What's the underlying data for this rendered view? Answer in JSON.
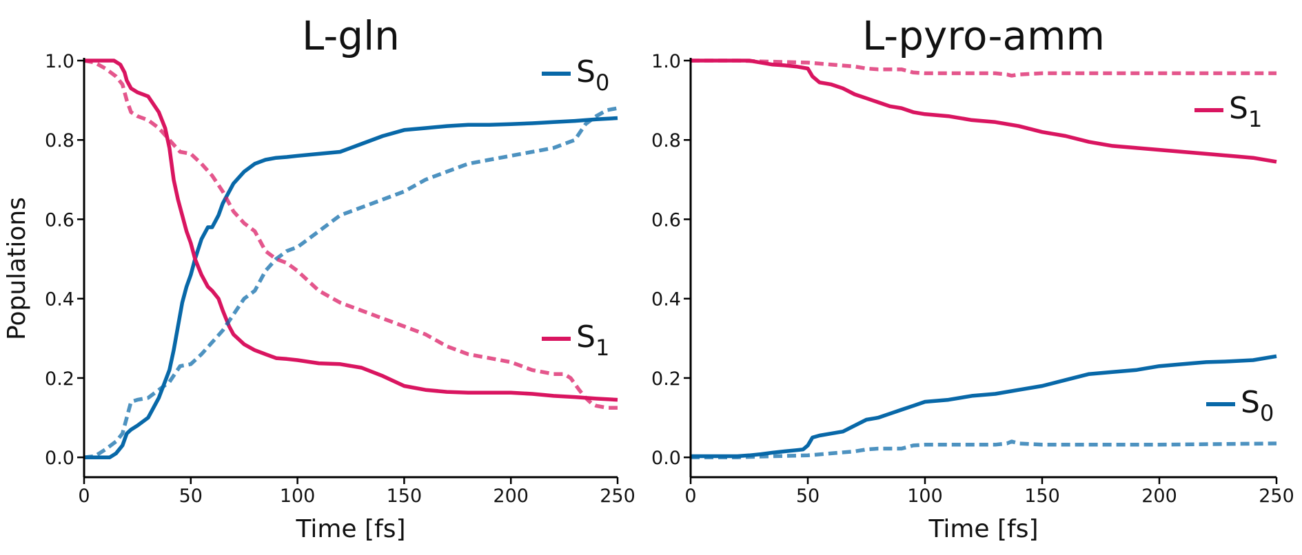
{
  "figure": {
    "ylabel": "Populations"
  },
  "colors": {
    "S0": "#0868a8",
    "S1": "#d91560",
    "axis": "#000000"
  },
  "chart_data": [
    {
      "type": "line",
      "title": "L-gln",
      "xlabel": "Time [fs]",
      "ylabel": "Populations",
      "xlim": [
        0,
        250
      ],
      "ylim": [
        -0.05,
        1.0
      ],
      "xticks": [
        0,
        50,
        100,
        150,
        200,
        250
      ],
      "yticks": [
        0.0,
        0.2,
        0.4,
        0.6,
        0.8,
        1.0
      ],
      "ytick_labels": [
        "0.0",
        "0.2",
        "0.4",
        "0.6",
        "0.8",
        "1.0"
      ],
      "legend": [
        {
          "base": "S",
          "sub": "0",
          "series": "S0",
          "placement": "upper-right"
        },
        {
          "base": "S",
          "sub": "1",
          "series": "S1",
          "placement": "lower-right"
        }
      ],
      "series": [
        {
          "name": "S0 solid",
          "state": "S0",
          "style": "solid",
          "x": [
            0,
            5,
            10,
            12,
            15,
            18,
            20,
            22,
            25,
            30,
            35,
            40,
            42,
            44,
            46,
            48,
            50,
            52,
            55,
            58,
            60,
            63,
            65,
            68,
            70,
            75,
            80,
            85,
            90,
            95,
            100,
            110,
            120,
            130,
            140,
            150,
            160,
            170,
            180,
            190,
            200,
            210,
            220,
            230,
            240,
            250
          ],
          "y": [
            0,
            0,
            0,
            0,
            0.01,
            0.03,
            0.06,
            0.07,
            0.08,
            0.1,
            0.15,
            0.22,
            0.27,
            0.33,
            0.39,
            0.43,
            0.46,
            0.5,
            0.55,
            0.58,
            0.58,
            0.61,
            0.64,
            0.67,
            0.69,
            0.72,
            0.74,
            0.75,
            0.755,
            0.757,
            0.76,
            0.765,
            0.77,
            0.79,
            0.81,
            0.825,
            0.83,
            0.835,
            0.838,
            0.838,
            0.84,
            0.842,
            0.845,
            0.848,
            0.852,
            0.855
          ]
        },
        {
          "name": "S1 solid",
          "state": "S1",
          "style": "solid",
          "x": [
            0,
            5,
            10,
            14,
            17,
            19,
            20,
            22,
            25,
            30,
            35,
            38,
            40,
            42,
            44,
            46,
            48,
            50,
            52,
            55,
            58,
            60,
            63,
            65,
            68,
            70,
            75,
            80,
            85,
            90,
            95,
            100,
            110,
            120,
            130,
            140,
            150,
            160,
            170,
            180,
            190,
            200,
            210,
            220,
            230,
            240,
            250
          ],
          "y": [
            1,
            1,
            1,
            1,
            0.99,
            0.97,
            0.95,
            0.93,
            0.92,
            0.91,
            0.87,
            0.83,
            0.78,
            0.7,
            0.65,
            0.61,
            0.57,
            0.54,
            0.5,
            0.46,
            0.43,
            0.42,
            0.4,
            0.37,
            0.33,
            0.31,
            0.285,
            0.27,
            0.26,
            0.25,
            0.248,
            0.245,
            0.237,
            0.235,
            0.226,
            0.205,
            0.18,
            0.17,
            0.165,
            0.163,
            0.163,
            0.163,
            0.16,
            0.155,
            0.152,
            0.148,
            0.145
          ]
        },
        {
          "name": "S0 dashed",
          "state": "S0",
          "style": "dashed",
          "x": [
            0,
            5,
            10,
            15,
            18,
            20,
            22,
            25,
            30,
            35,
            40,
            45,
            50,
            55,
            60,
            65,
            70,
            75,
            80,
            85,
            90,
            95,
            100,
            110,
            120,
            130,
            140,
            150,
            160,
            170,
            180,
            190,
            200,
            210,
            220,
            225,
            230,
            235,
            240,
            245,
            250
          ],
          "y": [
            0,
            0.003,
            0.02,
            0.04,
            0.06,
            0.1,
            0.14,
            0.145,
            0.15,
            0.17,
            0.19,
            0.23,
            0.235,
            0.26,
            0.29,
            0.32,
            0.36,
            0.4,
            0.42,
            0.47,
            0.5,
            0.52,
            0.53,
            0.57,
            0.61,
            0.63,
            0.65,
            0.67,
            0.7,
            0.72,
            0.74,
            0.75,
            0.76,
            0.77,
            0.78,
            0.79,
            0.8,
            0.84,
            0.86,
            0.875,
            0.88
          ]
        },
        {
          "name": "S1 dashed",
          "state": "S1",
          "style": "dashed",
          "x": [
            0,
            5,
            10,
            15,
            18,
            20,
            22,
            25,
            30,
            35,
            40,
            45,
            50,
            55,
            60,
            65,
            70,
            75,
            80,
            85,
            90,
            95,
            100,
            110,
            120,
            130,
            140,
            150,
            160,
            170,
            180,
            190,
            200,
            210,
            220,
            225,
            228,
            232,
            235,
            238,
            240,
            245,
            250
          ],
          "y": [
            1,
            0.995,
            0.98,
            0.96,
            0.94,
            0.9,
            0.87,
            0.86,
            0.85,
            0.83,
            0.8,
            0.77,
            0.765,
            0.74,
            0.71,
            0.67,
            0.62,
            0.59,
            0.57,
            0.52,
            0.5,
            0.49,
            0.47,
            0.42,
            0.39,
            0.37,
            0.35,
            0.33,
            0.31,
            0.28,
            0.26,
            0.25,
            0.24,
            0.22,
            0.21,
            0.21,
            0.2,
            0.17,
            0.15,
            0.135,
            0.13,
            0.125,
            0.125
          ]
        }
      ]
    },
    {
      "type": "line",
      "title": "L-pyro-amm",
      "xlabel": "Time [fs]",
      "ylabel": "",
      "xlim": [
        0,
        250
      ],
      "ylim": [
        -0.05,
        1.0
      ],
      "xticks": [
        0,
        50,
        100,
        150,
        200,
        250
      ],
      "yticks": [
        0.0,
        0.2,
        0.4,
        0.6,
        0.8,
        1.0
      ],
      "ytick_labels": [
        "0.0",
        "0.2",
        "0.4",
        "0.6",
        "0.8",
        "1.0"
      ],
      "legend": [
        {
          "base": "S",
          "sub": "1",
          "series": "S1",
          "placement": "upper-right"
        },
        {
          "base": "S",
          "sub": "0",
          "series": "S0",
          "placement": "lower-right"
        }
      ],
      "series": [
        {
          "name": "S1 solid",
          "state": "S1",
          "style": "solid",
          "x": [
            0,
            10,
            20,
            25,
            30,
            35,
            40,
            45,
            50,
            52,
            55,
            60,
            65,
            70,
            75,
            80,
            85,
            90,
            95,
            100,
            110,
            120,
            130,
            140,
            150,
            160,
            170,
            180,
            190,
            200,
            210,
            220,
            230,
            240,
            250
          ],
          "y": [
            1,
            1,
            1,
            1,
            0.995,
            0.99,
            0.988,
            0.985,
            0.98,
            0.96,
            0.945,
            0.94,
            0.93,
            0.915,
            0.905,
            0.895,
            0.885,
            0.88,
            0.87,
            0.865,
            0.86,
            0.85,
            0.845,
            0.835,
            0.82,
            0.81,
            0.795,
            0.785,
            0.78,
            0.775,
            0.77,
            0.765,
            0.76,
            0.755,
            0.745
          ]
        },
        {
          "name": "S0 solid",
          "state": "S0",
          "style": "solid",
          "x": [
            0,
            10,
            20,
            25,
            30,
            35,
            40,
            45,
            48,
            50,
            52,
            55,
            60,
            65,
            70,
            75,
            80,
            85,
            90,
            95,
            100,
            110,
            120,
            130,
            140,
            150,
            160,
            170,
            180,
            190,
            200,
            210,
            220,
            230,
            240,
            250
          ],
          "y": [
            0.003,
            0.003,
            0.003,
            0.005,
            0.008,
            0.012,
            0.015,
            0.018,
            0.02,
            0.03,
            0.05,
            0.055,
            0.06,
            0.065,
            0.08,
            0.095,
            0.1,
            0.11,
            0.12,
            0.13,
            0.14,
            0.145,
            0.155,
            0.16,
            0.17,
            0.18,
            0.195,
            0.21,
            0.215,
            0.22,
            0.23,
            0.235,
            0.24,
            0.242,
            0.245,
            0.255
          ]
        },
        {
          "name": "S1 dashed",
          "state": "S1",
          "style": "dashed",
          "x": [
            0,
            20,
            30,
            50,
            60,
            70,
            75,
            80,
            90,
            95,
            100,
            110,
            120,
            130,
            135,
            137,
            140,
            150,
            200,
            250
          ],
          "y": [
            1,
            1,
            0.998,
            0.995,
            0.99,
            0.985,
            0.98,
            0.978,
            0.978,
            0.97,
            0.968,
            0.968,
            0.968,
            0.968,
            0.965,
            0.962,
            0.965,
            0.968,
            0.968,
            0.968
          ]
        },
        {
          "name": "S0 dashed",
          "state": "S0",
          "style": "dashed",
          "x": [
            0,
            20,
            30,
            50,
            60,
            70,
            75,
            80,
            90,
            95,
            100,
            110,
            120,
            130,
            135,
            137,
            140,
            150,
            200,
            250
          ],
          "y": [
            0,
            0,
            0.002,
            0.005,
            0.01,
            0.015,
            0.02,
            0.022,
            0.022,
            0.03,
            0.032,
            0.032,
            0.032,
            0.032,
            0.035,
            0.04,
            0.035,
            0.032,
            0.032,
            0.035
          ]
        }
      ]
    }
  ]
}
